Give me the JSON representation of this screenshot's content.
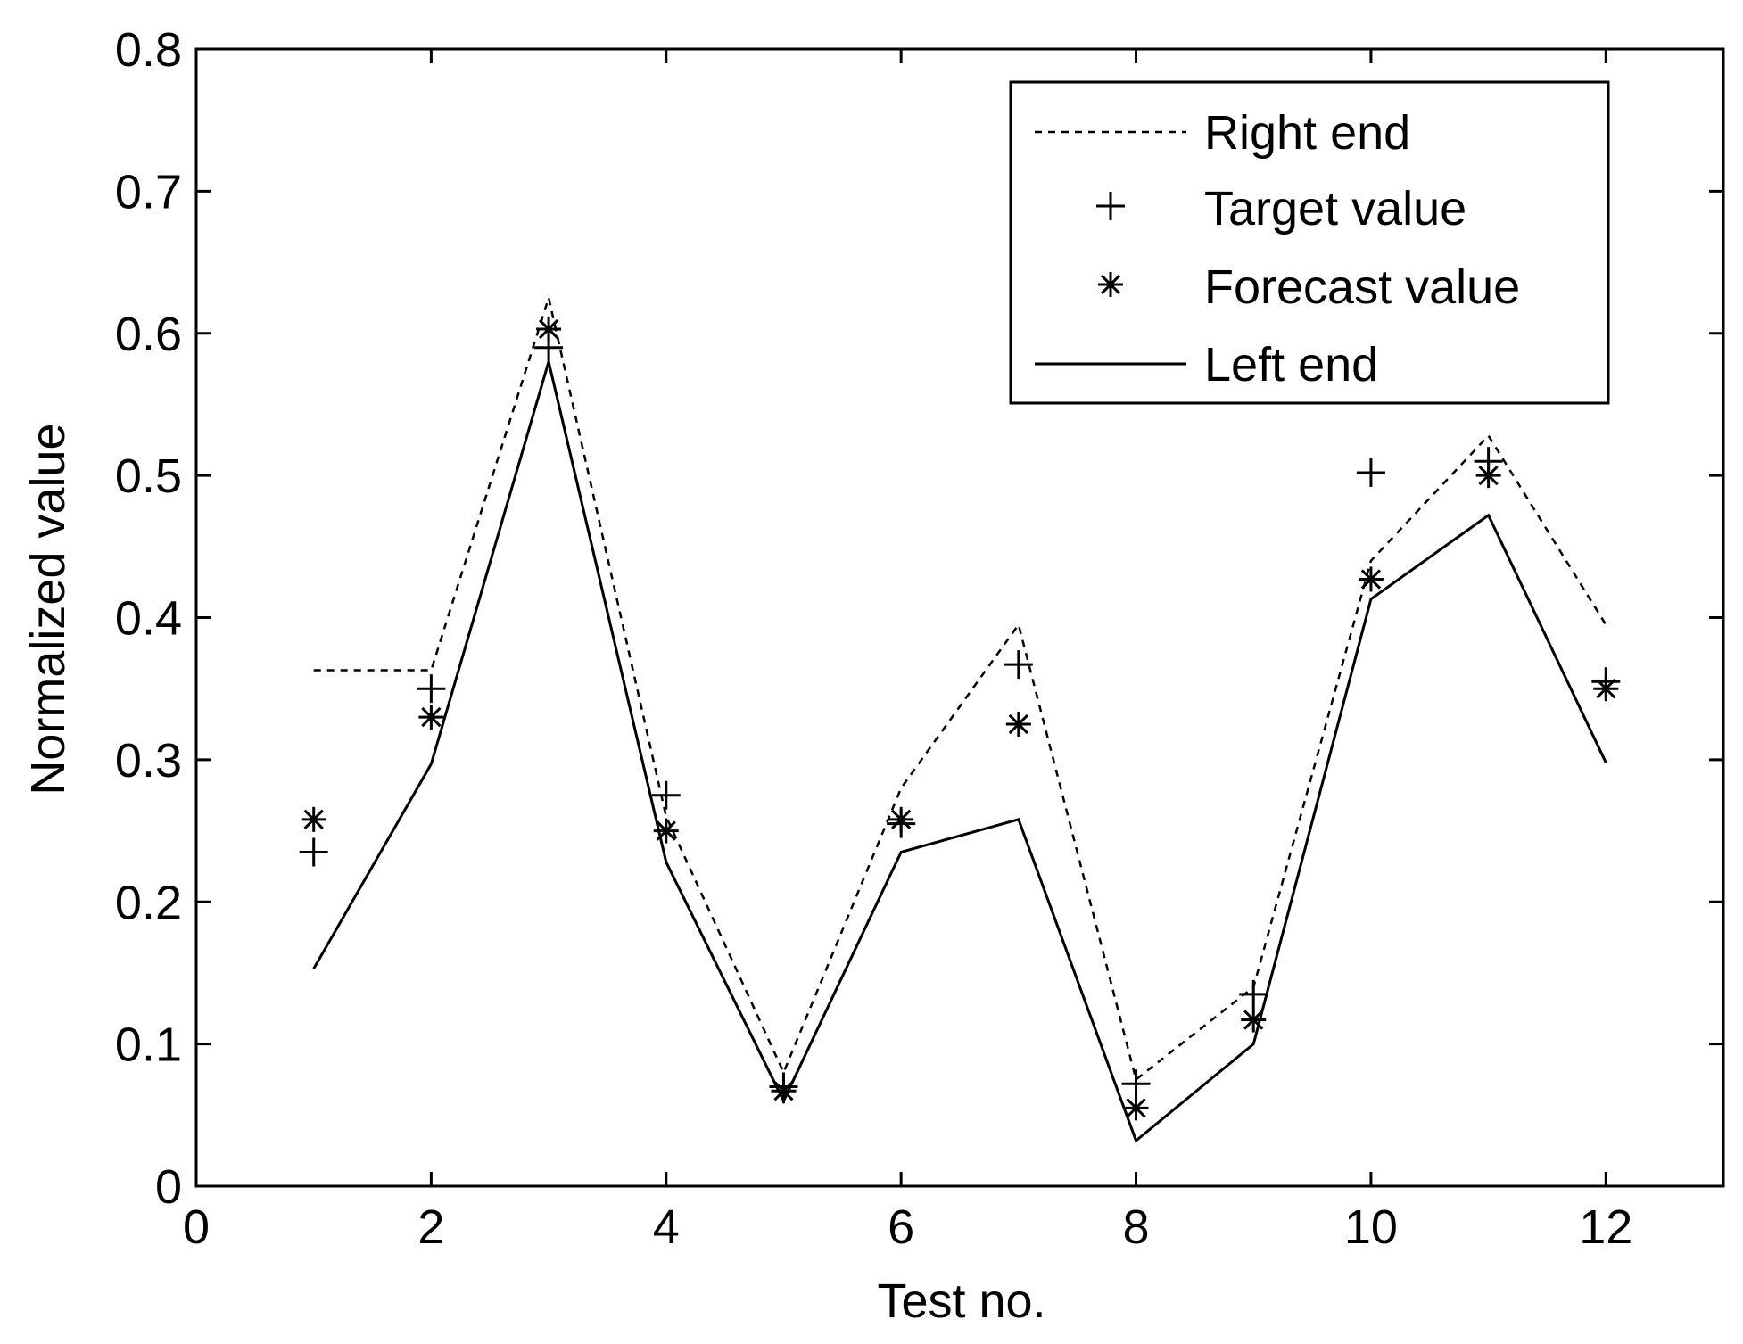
{
  "chart_data": {
    "type": "line",
    "title": "",
    "xlabel": "Test no.",
    "ylabel": "Normalized value",
    "xlim": [
      0,
      13
    ],
    "ylim": [
      0,
      0.8
    ],
    "xticks": [
      0,
      2,
      4,
      6,
      8,
      10,
      12
    ],
    "yticks": [
      0,
      0.1,
      0.2,
      0.3,
      0.4,
      0.5,
      0.6,
      0.7,
      0.8
    ],
    "xtick_labels": [
      "0",
      "2",
      "4",
      "6",
      "8",
      "10",
      "12"
    ],
    "ytick_labels": [
      "0",
      "0.1",
      "0.2",
      "0.3",
      "0.4",
      "0.5",
      "0.6",
      "0.7",
      "0.8"
    ],
    "grid": false,
    "legend_position": "top-right",
    "x": [
      1,
      2,
      3,
      4,
      5,
      6,
      7,
      8,
      9,
      10,
      11,
      12
    ],
    "series": [
      {
        "name": "Right end",
        "style": "dashed-line",
        "values": [
          0.363,
          0.363,
          0.625,
          0.26,
          0.08,
          0.28,
          0.395,
          0.075,
          0.14,
          0.44,
          0.528,
          0.395
        ]
      },
      {
        "name": "Target value",
        "style": "plus-marker",
        "values": [
          0.235,
          0.35,
          0.59,
          0.275,
          0.07,
          0.255,
          0.367,
          0.072,
          0.135,
          0.502,
          0.51,
          0.355
        ]
      },
      {
        "name": "Forecast value",
        "style": "asterisk-marker",
        "values": [
          0.258,
          0.33,
          0.603,
          0.25,
          0.067,
          0.258,
          0.325,
          0.055,
          0.117,
          0.427,
          0.5,
          0.35
        ]
      },
      {
        "name": "Left end",
        "style": "solid-line",
        "values": [
          0.153,
          0.297,
          0.58,
          0.228,
          0.06,
          0.235,
          0.258,
          0.032,
          0.1,
          0.413,
          0.472,
          0.298
        ]
      }
    ]
  }
}
